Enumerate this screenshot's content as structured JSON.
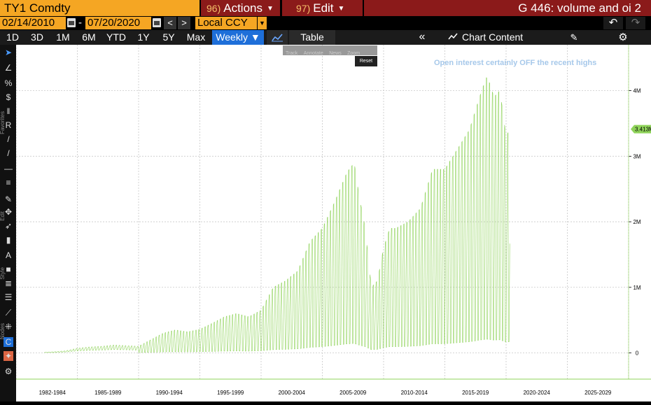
{
  "header": {
    "ticker": "TY1 Comdty",
    "actions_num": "96)",
    "actions_label": "Actions",
    "edit_num": "97)",
    "edit_label": "Edit",
    "chart_title": "G 446: volume and oi 2"
  },
  "daterange": {
    "start": "02/14/2010",
    "end": "07/20/2020",
    "separator": "-",
    "prev": "<",
    "next": ">",
    "currency": "Local CCY"
  },
  "toolbar": {
    "periods": [
      "1D",
      "3D",
      "1M",
      "6M",
      "YTD",
      "1Y",
      "5Y",
      "Max"
    ],
    "frequency": "Weekly ▼",
    "table_label": "Table",
    "chart_content_label": "Chart Content"
  },
  "left_tools": {
    "labels": [
      "Favorites",
      "Edit",
      "Style",
      "Nodes"
    ]
  },
  "mini_tools": {
    "items": [
      "Track",
      "Annotate",
      "News",
      "Zoom"
    ],
    "reset": "Reset"
  },
  "colors": {
    "accent_orange": "#f5a623",
    "header_red": "#8b1a1a",
    "series_green": "#8fd35a",
    "annotation_blue": "#a6c8ea",
    "selected_blue": "#1e6fd9"
  },
  "chart_data": {
    "type": "line",
    "annotation": "Open interest certainly OFF the recent highs",
    "last_value_label": "3.413M",
    "y_ticks": [
      0,
      1000000,
      2000000,
      3000000,
      4000000
    ],
    "y_tick_labels": [
      "0",
      "1M",
      "2M",
      "3M",
      "4M"
    ],
    "ylim": [
      -400000,
      4700000
    ],
    "x_tick_labels": [
      "1982-1984",
      "1985-1989",
      "1990-1994",
      "1995-1999",
      "2000-2004",
      "2005-2009",
      "2010-2014",
      "2015-2019",
      "2020-2024",
      "2025-2029"
    ],
    "xlim": [
      1980,
      2030
    ],
    "grid": true,
    "series": [
      {
        "x": [
          1982.3,
          1983,
          1984,
          1985,
          1986,
          1987,
          1988,
          1989,
          1990,
          1991,
          1992,
          1993,
          1994,
          1995,
          1996,
          1997,
          1998,
          1999,
          2000,
          2001,
          2002,
          2003,
          2004,
          2005,
          2006,
          2007,
          2007.6,
          2008,
          2008.5,
          2009,
          2009.5,
          2010,
          2010.5,
          2011,
          2012,
          2013,
          2014,
          2015,
          2016,
          2017,
          2018,
          2018.4,
          2018.7,
          2019,
          2019.5,
          2020,
          2020.3
        ],
        "peak": [
          10000,
          15000,
          30000,
          70000,
          90000,
          100000,
          120000,
          110000,
          100000,
          200000,
          300000,
          350000,
          320000,
          360000,
          450000,
          550000,
          600000,
          550000,
          650000,
          1000000,
          1100000,
          1250000,
          1700000,
          1900000,
          2300000,
          2750000,
          2900000,
          2400000,
          1900000,
          1000000,
          1100000,
          1600000,
          1900000,
          1900000,
          2000000,
          2200000,
          2800000,
          2800000,
          3100000,
          3400000,
          4000000,
          4200000,
          4100000,
          3900000,
          4000000,
          3300000,
          3413000
        ]
      }
    ]
  }
}
